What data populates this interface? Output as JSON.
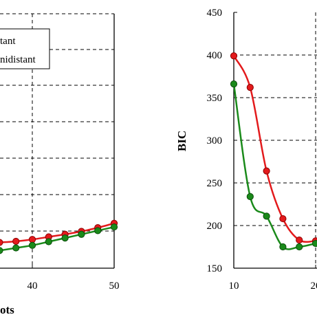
{
  "chart_data": [
    {
      "panel": "left",
      "type": "line",
      "xlabel": "ots",
      "ylabel": "",
      "x_ticks": [
        "40",
        "50"
      ],
      "xlim_visible": [
        35,
        50
      ],
      "ylim_visible": [
        0,
        3.5
      ],
      "grid": true,
      "legend": {
        "placement": "top-left",
        "entries": [
          "tant",
          "nidistant"
        ]
      },
      "series": [
        {
          "name": "tant",
          "color": "#e31a1c",
          "x": [
            36,
            38,
            40,
            42,
            44,
            46,
            48,
            50
          ],
          "y": [
            0.7,
            0.73,
            0.78,
            0.85,
            0.92,
            1.0,
            1.1,
            1.22
          ]
        },
        {
          "name": "nidistant",
          "color": "#1a8a1a",
          "x": [
            36,
            38,
            40,
            42,
            44,
            46,
            48,
            50
          ],
          "y": [
            0.48,
            0.55,
            0.62,
            0.72,
            0.82,
            0.92,
            1.02,
            1.12
          ]
        }
      ]
    },
    {
      "panel": "right",
      "type": "line",
      "ylabel": "BIC",
      "xlabel": "",
      "y_ticks": [
        "150",
        "200",
        "250",
        "300",
        "350",
        "400",
        "450"
      ],
      "x_ticks": [
        "10",
        "20"
      ],
      "ylim": [
        150,
        450
      ],
      "xlim_visible": [
        10,
        20
      ],
      "grid": true,
      "series": [
        {
          "color": "#e31a1c",
          "x": [
            10,
            12,
            14,
            16,
            18,
            20
          ],
          "y": [
            399,
            362,
            264,
            208,
            183,
            182
          ]
        },
        {
          "color": "#1a8a1a",
          "x": [
            10,
            12,
            14,
            16,
            18,
            20
          ],
          "y": [
            366,
            234,
            211,
            175,
            175,
            179
          ]
        }
      ]
    }
  ],
  "colors": {
    "red": "#e31a1c",
    "green": "#1a8a1a",
    "red_marker_edge": "#8b0000",
    "green_marker_edge": "#0b4d0b"
  }
}
